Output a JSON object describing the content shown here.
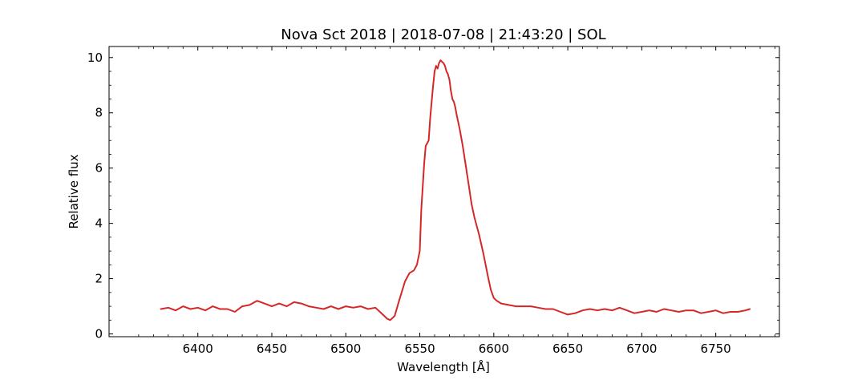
{
  "chart_data": {
    "type": "line",
    "title": "Nova Sct 2018 | 2018-07-08 | 21:43:20 | SOL",
    "xlabel": "Wavelength [Å]",
    "ylabel": "Relative flux",
    "xlim": [
      6340,
      6793
    ],
    "ylim": [
      -0.1,
      10.4
    ],
    "xticks": [
      6400,
      6450,
      6500,
      6550,
      6600,
      6650,
      6700,
      6750
    ],
    "yticks": [
      0,
      2,
      4,
      6,
      8,
      10
    ],
    "grid": false,
    "line_color": "#d62728",
    "series": [
      {
        "x": [
          6375,
          6380,
          6385,
          6390,
          6395,
          6400,
          6405,
          6410,
          6415,
          6420,
          6425,
          6430,
          6435,
          6440,
          6445,
          6450,
          6455,
          6460,
          6465,
          6470,
          6475,
          6480,
          6485,
          6490,
          6495,
          6500,
          6505,
          6510,
          6515,
          6520,
          6525,
          6528,
          6530,
          6533,
          6536,
          6540,
          6543,
          6546,
          6548,
          6550,
          6551,
          6553,
          6554,
          6556,
          6557,
          6558,
          6559,
          6560,
          6561,
          6562,
          6563,
          6564,
          6565,
          6566,
          6567,
          6568,
          6569,
          6570,
          6571,
          6572,
          6573,
          6574,
          6575,
          6577,
          6579,
          6581,
          6583,
          6585,
          6587,
          6590,
          6593,
          6596,
          6598,
          6600,
          6602,
          6605,
          6610,
          6615,
          6620,
          6625,
          6630,
          6635,
          6640,
          6645,
          6650,
          6655,
          6660,
          6665,
          6670,
          6675,
          6680,
          6685,
          6690,
          6695,
          6700,
          6705,
          6710,
          6715,
          6720,
          6725,
          6730,
          6735,
          6740,
          6745,
          6750,
          6755,
          6760,
          6765,
          6770,
          6773
        ],
        "y": [
          0.9,
          0.95,
          0.85,
          1.0,
          0.9,
          0.95,
          0.85,
          1.0,
          0.9,
          0.9,
          0.8,
          1.0,
          1.05,
          1.2,
          1.1,
          1.0,
          1.1,
          1.0,
          1.15,
          1.1,
          1.0,
          0.95,
          0.9,
          1.0,
          0.9,
          1.0,
          0.95,
          1.0,
          0.9,
          0.95,
          0.7,
          0.55,
          0.5,
          0.65,
          1.2,
          1.9,
          2.2,
          2.3,
          2.5,
          3.0,
          4.5,
          6.2,
          6.8,
          7.0,
          7.8,
          8.4,
          9.0,
          9.5,
          9.7,
          9.6,
          9.8,
          9.9,
          9.85,
          9.8,
          9.7,
          9.5,
          9.4,
          9.2,
          8.8,
          8.5,
          8.4,
          8.2,
          7.9,
          7.4,
          6.8,
          6.1,
          5.4,
          4.7,
          4.2,
          3.6,
          2.9,
          2.1,
          1.6,
          1.3,
          1.2,
          1.1,
          1.05,
          1.0,
          1.0,
          1.0,
          0.95,
          0.9,
          0.9,
          0.8,
          0.7,
          0.75,
          0.85,
          0.9,
          0.85,
          0.9,
          0.85,
          0.95,
          0.85,
          0.75,
          0.8,
          0.85,
          0.8,
          0.9,
          0.85,
          0.8,
          0.85,
          0.85,
          0.75,
          0.8,
          0.85,
          0.75,
          0.8,
          0.8,
          0.85,
          0.9
        ]
      }
    ]
  }
}
